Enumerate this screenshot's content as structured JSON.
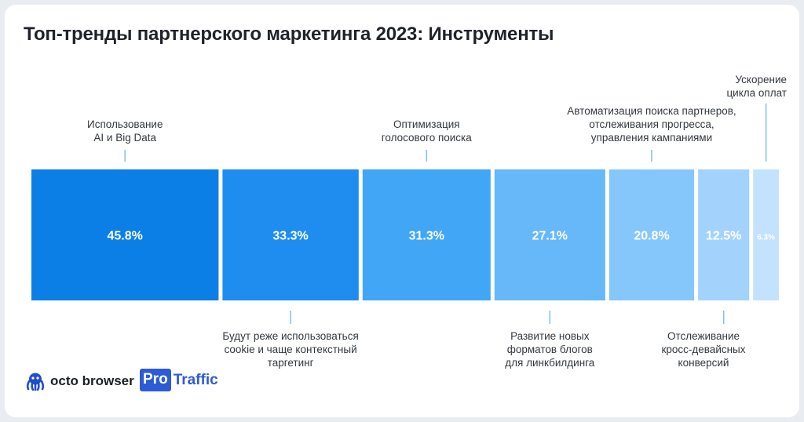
{
  "title": "Топ-тренды партнерского маркетинга 2023: Инструменты",
  "logos": {
    "octo": "octo browser",
    "pro": "Pro",
    "traffic": "Traffic"
  },
  "chart_data": {
    "type": "bar",
    "title": "Топ-тренды партнерского маркетинга 2023: Инструменты",
    "categories": [
      "Использование\nAI и Big Data",
      "Будут реже использоваться\ncookie и чаще контекстный\nтаргетинг",
      "Оптимизация\nголосового поиска",
      "Развитие новых\nформатов блогов\nдля линкбилдинга",
      "Автоматизация поиска партнеров,\nотслеживания прогресса,\nуправления кампаниями",
      "Отслеживание\nкросс-девайсных\nконверсий",
      "Ускорение\nцикла оплат"
    ],
    "values": [
      45.8,
      33.3,
      31.3,
      27.1,
      20.8,
      12.5,
      6.3
    ],
    "value_labels": [
      "45.8%",
      "33.3%",
      "31.3%",
      "27.1%",
      "20.8%",
      "12.5%",
      "6.3%"
    ],
    "label_positions": [
      "top",
      "bottom",
      "top",
      "bottom",
      "top",
      "bottom",
      "top"
    ],
    "colors": [
      "#0c7fe6",
      "#1f8cf0",
      "#42a6f6",
      "#66b8f9",
      "#86c7fb",
      "#a3d3fc",
      "#c3e2fd"
    ],
    "value_label_colors": [
      "#ffffff",
      "#ffffff",
      "#ffffff",
      "#ffffff",
      "#ffffff",
      "#ffffff",
      "#ffffff"
    ],
    "tick_color": "#7fc0f2",
    "grid": false,
    "legend": "none"
  }
}
